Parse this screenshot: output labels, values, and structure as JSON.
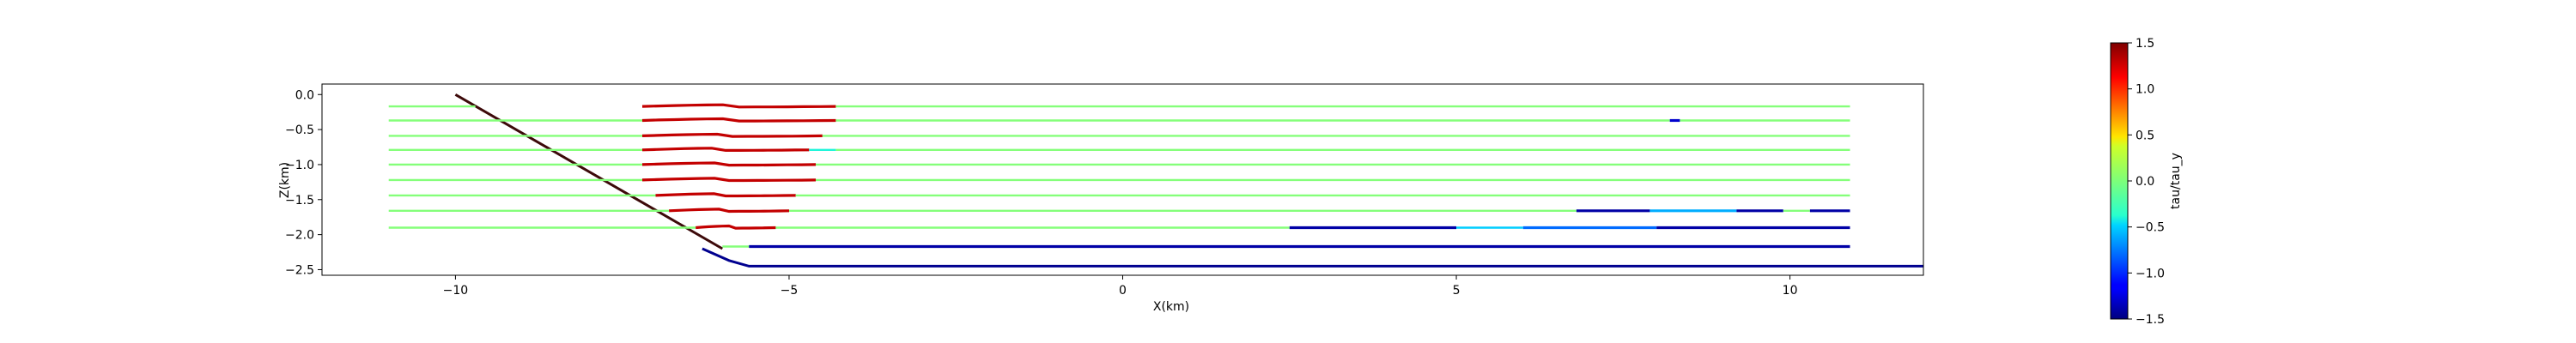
{
  "chart_data": {
    "type": "line",
    "title": "",
    "xlabel": "X(km)",
    "ylabel": "Z(km)",
    "xlim": [
      -12.0,
      12.0
    ],
    "ylim": [
      -2.58,
      0.15
    ],
    "xticks": [
      -10,
      -5,
      0,
      5,
      10
    ],
    "yticks": [
      0.0,
      -0.5,
      -1.0,
      -1.5,
      -2.0,
      -2.5
    ],
    "xtick_labels": [
      "−10",
      "−5",
      "0",
      "5",
      "10"
    ],
    "ytick_labels": [
      "0.0",
      "−0.5",
      "−1.0",
      "−1.5",
      "−2.0",
      "−2.5"
    ],
    "grid": false,
    "colorbar": {
      "label": "tau/tau_y",
      "min": -1.5,
      "max": 1.5,
      "colormap": "jet",
      "ticks": [
        1.5,
        1.0,
        0.5,
        0.0,
        -0.5,
        -1.0,
        -1.5
      ],
      "tick_labels": [
        "1.5",
        "1.0",
        "0.5",
        "0.0",
        "−0.5",
        "−1.0",
        "−1.5"
      ]
    },
    "series": [
      {
        "name": "",
        "kind": "fault",
        "color": "#3d0a0a",
        "x": [
          -10.0,
          -6.0
        ],
        "y": [
          0.0,
          -2.2
        ]
      },
      {
        "name": "",
        "kind": "bottom-boundary",
        "color": "#00008f",
        "x": [
          -6.3,
          -5.9,
          -5.6,
          12.0
        ],
        "y": [
          -2.2,
          -2.37,
          -2.45,
          -2.45
        ]
      },
      {
        "name": "",
        "kind": "layer",
        "depth": -0.17,
        "x_start": -11.0,
        "x_end": 10.9,
        "segments": [
          [
            -11.0,
            -9.7,
            0.0
          ],
          [
            -7.2,
            -4.3,
            1.3
          ],
          [
            -4.3,
            10.9,
            0.0
          ]
        ]
      },
      {
        "name": "",
        "kind": "layer",
        "depth": -0.37,
        "x_start": -11.0,
        "x_end": 10.9,
        "segments": [
          [
            -11.0,
            -7.2,
            0.0
          ],
          [
            -7.2,
            -4.3,
            1.3
          ],
          [
            -4.3,
            8.2,
            0.0
          ],
          [
            8.2,
            8.35,
            -1.3
          ],
          [
            8.35,
            10.9,
            0.0
          ]
        ]
      },
      {
        "name": "",
        "kind": "layer",
        "depth": -0.59,
        "x_start": -11.0,
        "x_end": 10.9,
        "segments": [
          [
            -11.0,
            -7.2,
            0.0
          ],
          [
            -7.2,
            -4.5,
            1.3
          ],
          [
            -4.5,
            10.9,
            0.0
          ]
        ]
      },
      {
        "name": "",
        "kind": "layer",
        "depth": -0.79,
        "x_start": -11.0,
        "x_end": 10.9,
        "segments": [
          [
            -11.0,
            -7.2,
            0.0
          ],
          [
            -7.2,
            -4.7,
            1.3
          ],
          [
            -4.7,
            -4.3,
            -0.4
          ],
          [
            -4.3,
            10.9,
            0.0
          ]
        ]
      },
      {
        "name": "",
        "kind": "layer",
        "depth": -1.0,
        "x_start": -11.0,
        "x_end": 10.9,
        "segments": [
          [
            -11.0,
            -7.2,
            0.0
          ],
          [
            -7.2,
            -4.6,
            1.3
          ],
          [
            -4.6,
            10.9,
            0.0
          ]
        ]
      },
      {
        "name": "",
        "kind": "layer",
        "depth": -1.22,
        "x_start": -11.0,
        "x_end": 10.9,
        "segments": [
          [
            -11.0,
            -7.2,
            0.0
          ],
          [
            -7.2,
            -4.6,
            1.3
          ],
          [
            -4.6,
            10.9,
            0.0
          ]
        ]
      },
      {
        "name": "",
        "kind": "layer",
        "depth": -1.44,
        "x_start": -11.0,
        "x_end": 10.9,
        "segments": [
          [
            -11.0,
            -7.0,
            0.0
          ],
          [
            -7.0,
            -4.9,
            1.3
          ],
          [
            -4.9,
            10.9,
            0.0
          ]
        ]
      },
      {
        "name": "",
        "kind": "layer",
        "depth": -1.66,
        "x_start": -11.0,
        "x_end": 10.9,
        "segments": [
          [
            -11.0,
            -6.8,
            0.0
          ],
          [
            -6.8,
            -5.0,
            1.3
          ],
          [
            -5.0,
            6.8,
            0.0
          ],
          [
            6.8,
            7.9,
            -1.4
          ],
          [
            7.9,
            9.2,
            -0.6
          ],
          [
            9.2,
            9.9,
            -1.4
          ],
          [
            9.9,
            10.3,
            0.0
          ],
          [
            10.3,
            10.9,
            -1.4
          ]
        ]
      },
      {
        "name": "",
        "kind": "layer",
        "depth": -1.9,
        "x_start": -11.0,
        "x_end": 10.9,
        "segments": [
          [
            -11.0,
            -6.4,
            0.0
          ],
          [
            -6.4,
            -5.2,
            1.3
          ],
          [
            -5.2,
            2.5,
            0.0
          ],
          [
            2.5,
            5.0,
            -1.4
          ],
          [
            5.0,
            6.0,
            -0.5
          ],
          [
            6.0,
            8.0,
            -0.8
          ],
          [
            8.0,
            10.9,
            -1.4
          ]
        ]
      },
      {
        "name": "",
        "kind": "layer",
        "depth": -2.17,
        "x_start": -6.0,
        "x_end": 10.9,
        "segments": [
          [
            -6.0,
            -5.6,
            0.0
          ],
          [
            -5.6,
            10.9,
            -1.4
          ]
        ]
      }
    ]
  }
}
